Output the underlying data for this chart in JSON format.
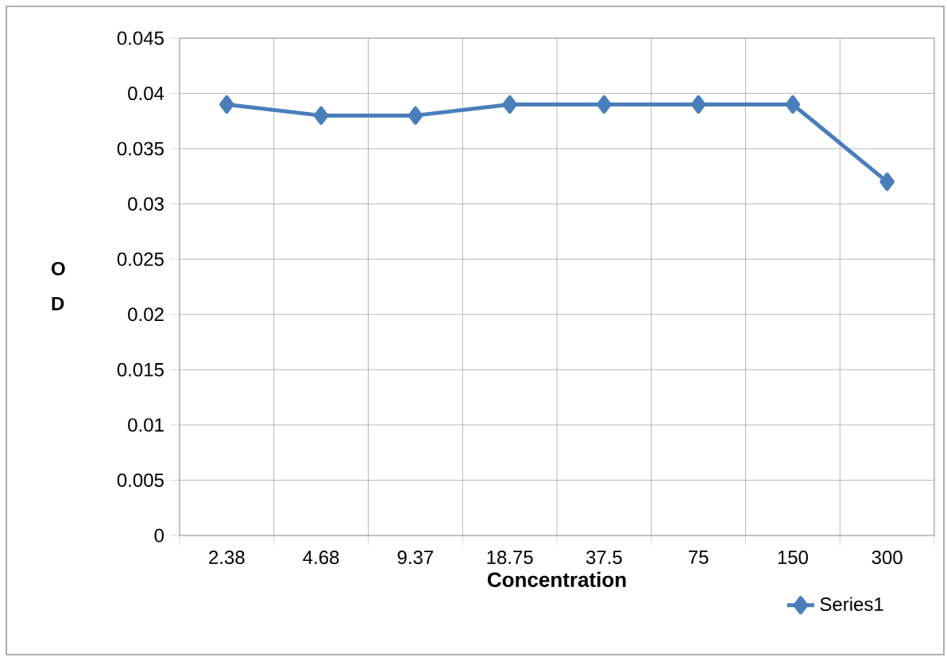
{
  "chart_data": {
    "type": "line",
    "xlabel": "Concentration",
    "ylabel": "O D",
    "categories": [
      "2.38",
      "4.68",
      "9.37",
      "18.75",
      "37.5",
      "75",
      "150",
      "300"
    ],
    "series": [
      {
        "name": "Series1",
        "color": "#4a7ebb",
        "values": [
          0.039,
          0.038,
          0.038,
          0.039,
          0.039,
          0.039,
          0.039,
          0.032
        ]
      }
    ],
    "ylim": [
      0,
      0.045
    ],
    "yticks": [
      0,
      0.005,
      0.01,
      0.015,
      0.02,
      0.025,
      0.03,
      0.035,
      0.04,
      0.045
    ],
    "grid": true,
    "legend": "bottom right",
    "marker": "diamond",
    "line_style": "solid"
  }
}
